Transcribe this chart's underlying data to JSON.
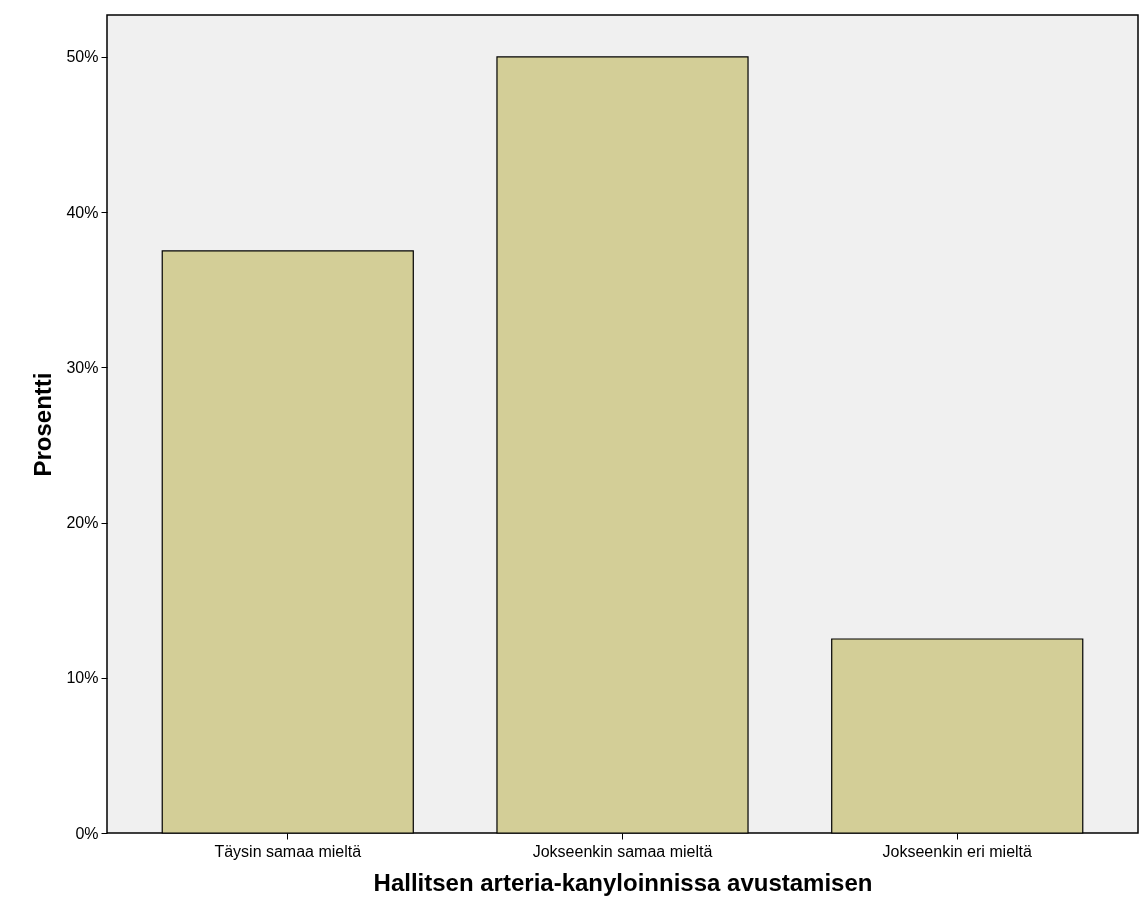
{
  "chart_data": {
    "type": "bar",
    "xlabel": "Hallitsen arteria-kanyloinnissa avustamisen",
    "ylabel": "Prosentti",
    "categories": [
      "Täysin samaa mieltä",
      "Jokseenkin samaa mieltä",
      "Jokseenkin eri mieltä"
    ],
    "values": [
      37.5,
      50,
      12.5
    ],
    "color": "#d3ce97",
    "ylim": [
      0,
      52.7
    ],
    "yticks": [
      {
        "value": 0,
        "label": "0%"
      },
      {
        "value": 10,
        "label": "10%"
      },
      {
        "value": 20,
        "label": "20%"
      },
      {
        "value": 30,
        "label": "30%"
      },
      {
        "value": 40,
        "label": "40%"
      },
      {
        "value": 50,
        "label": "50%"
      }
    ],
    "grid": false
  }
}
